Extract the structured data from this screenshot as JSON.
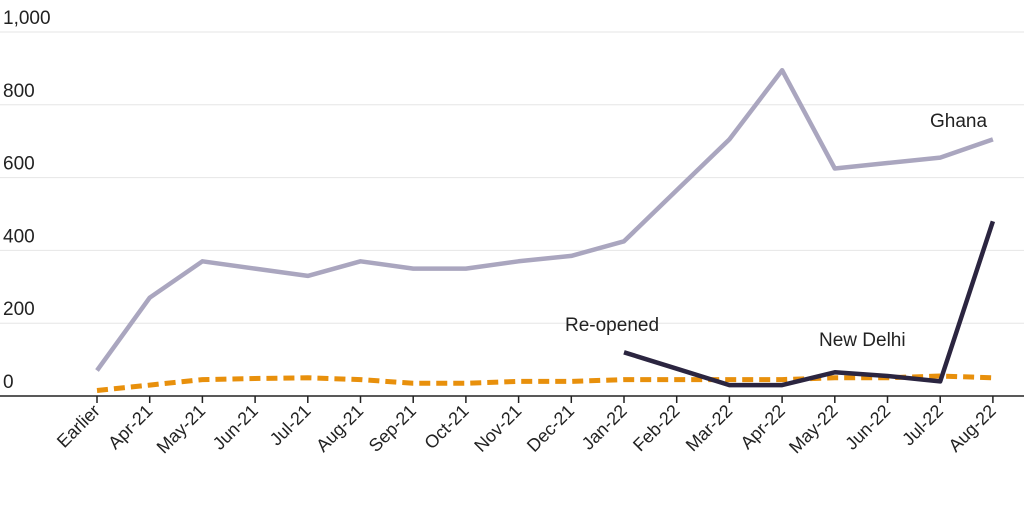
{
  "chart_data": {
    "type": "line",
    "title": "",
    "xlabel": "",
    "ylabel": "",
    "ylim": [
      0,
      1000
    ],
    "yticks": [
      "0",
      "200",
      "400",
      "600",
      "800",
      "1,000"
    ],
    "categories": [
      "Earlier",
      "Apr-21",
      "May-21",
      "Jun-21",
      "Jul-21",
      "Aug-21",
      "Sep-21",
      "Oct-21",
      "Nov-21",
      "Dec-21",
      "Jan-22",
      "Feb-22",
      "Mar-22",
      "Apr-22",
      "May-22",
      "Jun-22",
      "Jul-22",
      "Aug-22"
    ],
    "grid": true,
    "legend": "none",
    "series": [
      {
        "name": "Ghana",
        "color": "#aaa6bf",
        "style": "solid",
        "values": [
          70,
          270,
          370,
          350,
          330,
          370,
          350,
          350,
          370,
          385,
          425,
          565,
          705,
          895,
          625,
          640,
          655,
          705
        ]
      },
      {
        "name": "New Delhi",
        "color": "#2b2540",
        "style": "solid",
        "values": [
          null,
          null,
          null,
          null,
          null,
          null,
          null,
          null,
          null,
          null,
          120,
          75,
          30,
          30,
          65,
          55,
          40,
          480
        ]
      },
      {
        "name": "",
        "color": "#e8900c",
        "style": "dashed",
        "values": [
          15,
          30,
          45,
          48,
          50,
          45,
          35,
          35,
          40,
          40,
          45,
          45,
          45,
          45,
          50,
          50,
          55,
          50
        ]
      }
    ],
    "annotations": [
      {
        "text": "Ghana",
        "series": 0
      },
      {
        "text": "New Delhi",
        "series": 1
      },
      {
        "text": "Re-opened",
        "series": 1
      }
    ]
  }
}
